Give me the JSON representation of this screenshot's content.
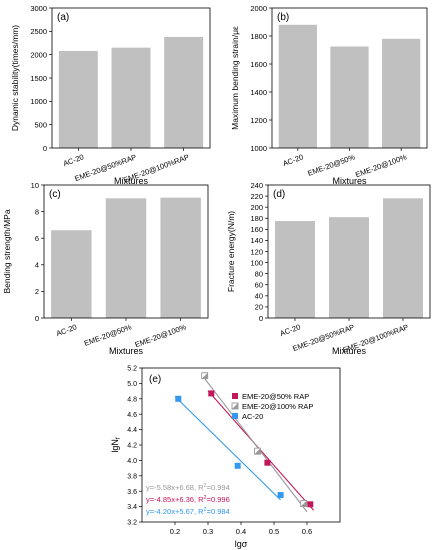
{
  "colors": {
    "bar": "#c0c0c0",
    "frame": "#000000",
    "s1": "#c2185b",
    "s2": "#999999",
    "s3": "#3399ee"
  },
  "chart_data": [
    {
      "type": "bar",
      "panel_label": "(a)",
      "categories": [
        "AC-20",
        "EME-20@50%RAP",
        "EME-20@100%RAP"
      ],
      "values": [
        2080,
        2150,
        2380
      ],
      "ylabel": "Dynamic stability(times/mm)",
      "xlabel": "Mixtures",
      "ylim": [
        0,
        3000
      ],
      "yticks": [
        0,
        500,
        1000,
        1500,
        2000,
        2500,
        3000
      ],
      "grid": false
    },
    {
      "type": "bar",
      "panel_label": "(b)",
      "categories": [
        "AC-20",
        "EME-20@50%",
        "EME-20@100%"
      ],
      "values": [
        1880,
        1725,
        1780
      ],
      "ylabel": "Maximum bending strain/με",
      "xlabel": "Mixtures",
      "ylim": [
        1000,
        2000
      ],
      "yticks": [
        1000,
        1200,
        1400,
        1600,
        1800,
        2000
      ],
      "grid": false
    },
    {
      "type": "bar",
      "panel_label": "(c)",
      "categories": [
        "AC-20",
        "EME-20@50%",
        "EME-20@100%"
      ],
      "values": [
        6.6,
        9.0,
        9.05
      ],
      "ylabel": "Bending strength/MPa",
      "xlabel": "Mixtures",
      "ylim": [
        0,
        10
      ],
      "yticks": [
        0,
        2,
        4,
        6,
        8,
        10
      ],
      "grid": false
    },
    {
      "type": "bar",
      "panel_label": "(d)",
      "categories": [
        "AC-20",
        "EME-20@50%RAP",
        "EME-20@100%RAP"
      ],
      "values": [
        175,
        182,
        216
      ],
      "ylabel": "Fracture energy(N/m)",
      "xlabel": "Mixtures",
      "ylim": [
        0,
        240
      ],
      "yticks": [
        0,
        20,
        40,
        60,
        80,
        100,
        120,
        140,
        160,
        180,
        200,
        220,
        240
      ],
      "grid": false
    },
    {
      "type": "scatter",
      "panel_label": "(e)",
      "xlabel": "lgσ",
      "ylabel_main": "lgN",
      "ylabel_sub": "f",
      "xlim": [
        0.1,
        0.7
      ],
      "ylim": [
        3.2,
        5.2
      ],
      "xticks": [
        0.2,
        0.3,
        0.4,
        0.5,
        0.6
      ],
      "yticks": [
        3.2,
        3.4,
        3.6,
        3.8,
        4.0,
        4.2,
        4.4,
        4.6,
        4.8,
        5.0,
        5.2
      ],
      "legend_position": "top-right",
      "series": [
        {
          "name": "EME-20@50% RAP",
          "marker": "square-filled",
          "color": "#c2185b",
          "x": [
            0.31,
            0.48,
            0.61
          ],
          "y": [
            4.87,
            3.97,
            3.43
          ],
          "fit": {
            "slope": -4.85,
            "intercept": 6.36,
            "x_range": [
              0.3,
              0.62
            ]
          },
          "equation_text": "y=-4.85x+6.36, R",
          "r2_text": "=0.996"
        },
        {
          "name": "EME-20@100% RAP",
          "marker": "square-half",
          "color": "#999999",
          "x": [
            0.29,
            0.45,
            0.59
          ],
          "y": [
            5.1,
            4.12,
            3.44
          ],
          "fit": {
            "slope": -5.58,
            "intercept": 6.68,
            "x_range": [
              0.28,
              0.6
            ]
          },
          "equation_text": "y=-5.58x+6.68, R",
          "r2_text": "=0.994"
        },
        {
          "name": "AC-20",
          "marker": "square-filled",
          "color": "#3399ee",
          "x": [
            0.21,
            0.39,
            0.52
          ],
          "y": [
            4.8,
            3.93,
            3.55
          ],
          "fit": {
            "slope": -4.2,
            "intercept": 5.67,
            "x_range": [
              0.2,
              0.52
            ]
          },
          "equation_text": "y=-4.20x+5.67, R",
          "r2_text": "=0.984"
        }
      ],
      "equation_order": [
        1,
        0,
        2
      ]
    }
  ]
}
